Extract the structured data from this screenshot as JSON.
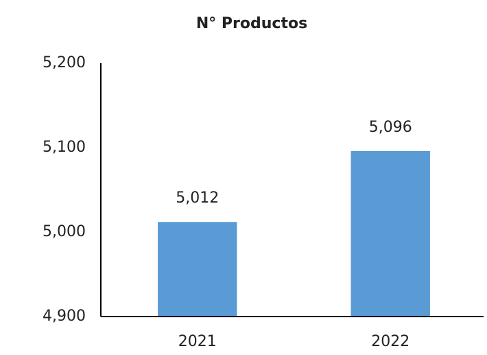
{
  "chart_data": {
    "type": "bar",
    "title": "N° Productos",
    "categories": [
      "2021",
      "2022"
    ],
    "values": [
      5012,
      5096
    ],
    "value_labels": [
      "5,012",
      "5,096"
    ],
    "color": "#5b9bd5",
    "ylim": [
      4900,
      5200
    ],
    "yticks": [
      {
        "value": 4900,
        "label": "4,900"
      },
      {
        "value": 5000,
        "label": "5,000"
      },
      {
        "value": 5100,
        "label": "5,100"
      },
      {
        "value": 5200,
        "label": "5,200"
      }
    ],
    "grid": false
  }
}
